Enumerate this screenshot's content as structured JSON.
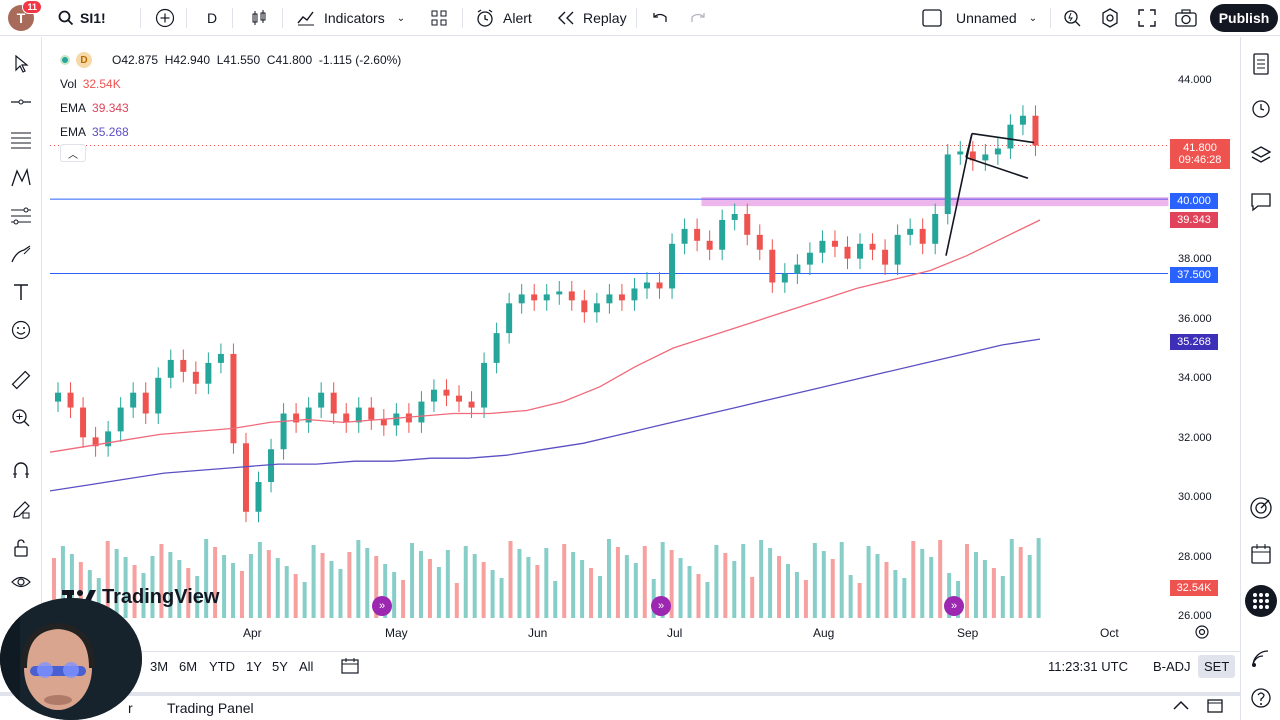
{
  "topbar": {
    "avatar_letter": "T",
    "notifications": "11",
    "symbol": "SI1!",
    "interval": "D",
    "indicators_label": "Indicators",
    "alert_label": "Alert",
    "replay_label": "Replay",
    "layout_name": "Unnamed",
    "publish_label": "Publish"
  },
  "legend": {
    "ohlc": "O42.875  H42.940  L41.550  C41.800  -1.115 (-2.60%)",
    "vol_label": "Vol",
    "vol_value": "32.54K",
    "ema1_label": "EMA",
    "ema1_value": "39.343",
    "ema2_label": "EMA",
    "ema2_value": "35.268",
    "interval_badge": "D"
  },
  "price_axis": [
    "44.000",
    "38.000",
    "36.000",
    "34.000",
    "32.000",
    "30.000",
    "28.000",
    "26.000"
  ],
  "price_labels": {
    "last": "41.800",
    "countdown": "09:46:28",
    "level_40": "40.000",
    "ema1": "39.343",
    "level_375": "37.500",
    "ema2": "35.268",
    "volume": "32.54K"
  },
  "time_axis": [
    "Apr",
    "May",
    "Jun",
    "Jul",
    "Aug",
    "Sep",
    "Oct"
  ],
  "bottombar": {
    "ranges": [
      "3M",
      "6M",
      "YTD",
      "1Y",
      "5Y",
      "All"
    ],
    "clock": "11:23:31 UTC",
    "badj": "B-ADJ",
    "set": "SET"
  },
  "panel": {
    "trading_panel": "Trading Panel",
    "left_partial": "r"
  },
  "watermark": "TradingView",
  "colors": {
    "up": "#26a69a",
    "down": "#ef5350",
    "ema_fast": "#f06a7a",
    "ema_slow": "#5b4fc4",
    "level_line": "#2962ff",
    "zone": "#cc33cc"
  },
  "chart_data": {
    "type": "candlestick",
    "symbol": "SI1!",
    "x": [
      "Apr",
      "May",
      "Jun",
      "Jul",
      "Aug",
      "Sep",
      "Oct"
    ],
    "ylim": [
      26,
      44.5
    ],
    "horizontal_levels": [
      40.0,
      37.5
    ],
    "close_path": [
      33.5,
      33.0,
      32.0,
      31.7,
      32.2,
      33.0,
      33.5,
      32.8,
      34.0,
      34.6,
      34.2,
      33.8,
      34.5,
      34.8,
      31.8,
      29.5,
      30.5,
      31.6,
      32.8,
      32.5,
      33.0,
      33.5,
      32.8,
      32.5,
      33.0,
      32.6,
      32.4,
      32.8,
      32.5,
      33.2,
      33.6,
      33.4,
      33.2,
      33.0,
      34.5,
      35.5,
      36.5,
      36.8,
      36.6,
      36.8,
      36.9,
      36.6,
      36.2,
      36.5,
      36.8,
      36.6,
      37.0,
      37.2,
      37.0,
      38.5,
      39.0,
      38.6,
      38.3,
      39.3,
      39.5,
      38.8,
      38.3,
      37.2,
      37.5,
      37.8,
      38.2,
      38.6,
      38.4,
      38.0,
      38.5,
      38.3,
      37.8,
      38.8,
      39.0,
      38.5,
      39.5,
      41.5,
      41.6,
      41.3,
      41.5,
      41.7,
      42.5,
      42.8,
      41.8
    ],
    "ema_fast_path": [
      31.5,
      31.7,
      31.9,
      32.1,
      32.2,
      32.3,
      32.5,
      32.6,
      32.5,
      32.6,
      32.7,
      32.8,
      32.8,
      32.9,
      33.2,
      33.7,
      34.4,
      35.0,
      35.4,
      35.8,
      36.2,
      36.6,
      37.0,
      37.3,
      37.6,
      38.1,
      38.7,
      39.3
    ],
    "ema_slow_path": [
      30.2,
      30.4,
      30.6,
      30.8,
      30.9,
      31.0,
      31.1,
      31.1,
      31.2,
      31.2,
      31.3,
      31.3,
      31.4,
      31.6,
      31.8,
      32.1,
      32.4,
      32.7,
      33.0,
      33.3,
      33.6,
      33.9,
      34.2,
      34.5,
      34.8,
      35.1,
      35.3
    ]
  }
}
